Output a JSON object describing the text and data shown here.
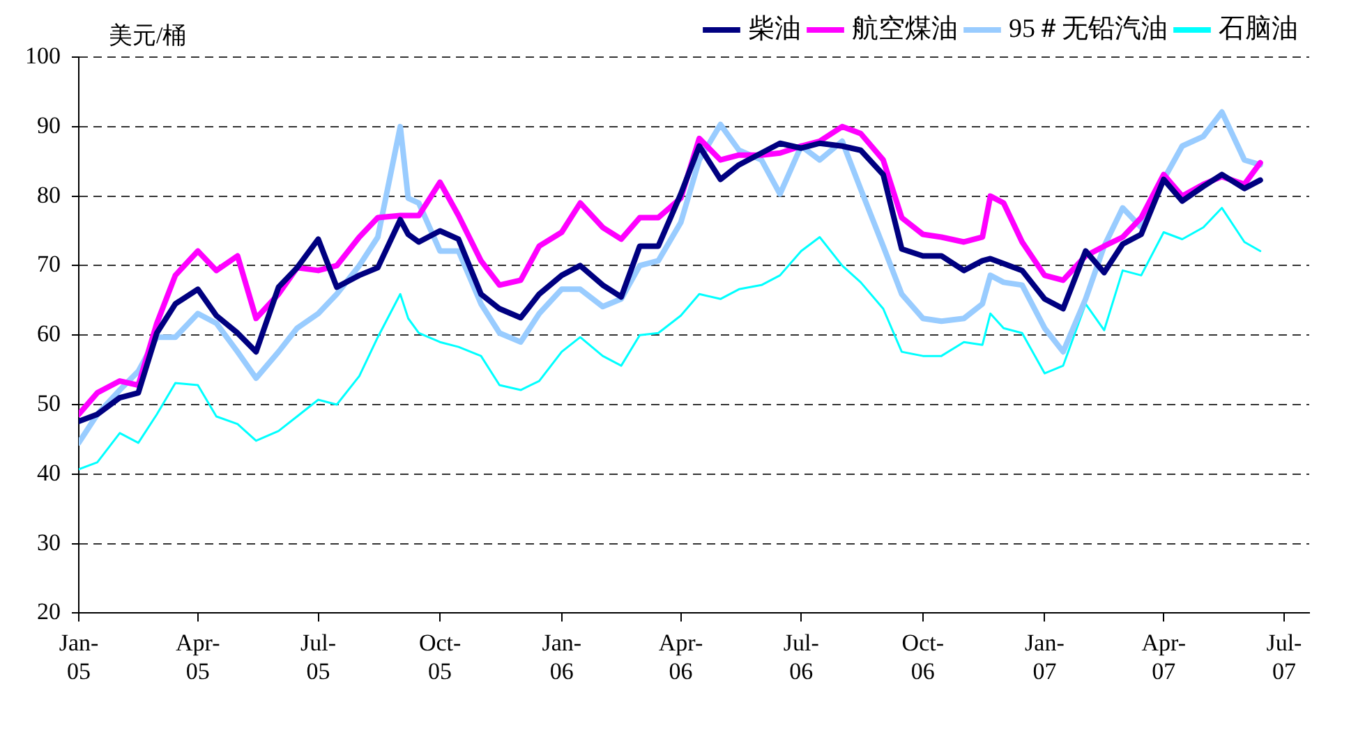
{
  "chart_data": {
    "type": "line",
    "ylabel": "美元/桶",
    "x": [
      "2005-01-01",
      "2005-01-15",
      "2005-02-01",
      "2005-02-15",
      "2005-03-01",
      "2005-03-15",
      "2005-04-01",
      "2005-04-15",
      "2005-05-01",
      "2005-05-15",
      "2005-06-01",
      "2005-06-15",
      "2005-07-01",
      "2005-07-15",
      "2005-08-01",
      "2005-08-15",
      "2005-09-01",
      "2005-09-07",
      "2005-09-15",
      "2005-10-01",
      "2005-10-15",
      "2005-11-01",
      "2005-11-15",
      "2005-12-01",
      "2005-12-15",
      "2006-01-01",
      "2006-01-15",
      "2006-02-01",
      "2006-02-15",
      "2006-03-01",
      "2006-03-15",
      "2006-04-01",
      "2006-04-15",
      "2006-05-01",
      "2006-05-15",
      "2006-06-01",
      "2006-06-15",
      "2006-07-01",
      "2006-07-15",
      "2006-08-01",
      "2006-08-15",
      "2006-09-01",
      "2006-09-15",
      "2006-10-01",
      "2006-10-15",
      "2006-11-01",
      "2006-11-15",
      "2006-11-21",
      "2006-12-01",
      "2006-12-15",
      "2007-01-01",
      "2007-01-15",
      "2007-02-01",
      "2007-02-15",
      "2007-03-01",
      "2007-03-15",
      "2007-04-01",
      "2007-04-15",
      "2007-05-01",
      "2007-05-15",
      "2007-06-01",
      "2007-06-13"
    ],
    "series": [
      {
        "name": "柴油",
        "color": "#000080",
        "values": [
          47.6,
          48.6,
          51,
          51.7,
          60.3,
          64.5,
          66.6,
          62.8,
          60.3,
          57.6,
          66.9,
          69.7,
          73.8,
          66.9,
          68.6,
          69.7,
          76.6,
          74.5,
          73.4,
          75,
          73.8,
          65.9,
          63.8,
          62.5,
          65.9,
          68.6,
          70,
          67.2,
          65.5,
          72.8,
          72.8,
          80.3,
          87.2,
          82.4,
          84.5,
          86.2,
          87.6,
          86.9,
          87.6,
          87.2,
          86.6,
          83.1,
          72.4,
          71.4,
          71.4,
          69.3,
          70.7,
          71,
          70.3,
          69.3,
          65.2,
          63.8,
          72.1,
          69,
          73.1,
          74.5,
          82.4,
          79.3,
          81.4,
          83.1,
          81.1,
          82.3
        ]
      },
      {
        "name": "航空煤油",
        "color": "#ff00ff",
        "values": [
          48.6,
          51.7,
          53.4,
          52.8,
          61.7,
          68.6,
          72.1,
          69.3,
          71.4,
          62.4,
          65.9,
          69.7,
          69.3,
          70,
          74.1,
          76.9,
          77.2,
          77.2,
          77.2,
          82,
          77.2,
          70.7,
          67.2,
          67.9,
          72.8,
          74.8,
          79,
          75.5,
          73.8,
          76.9,
          76.9,
          79.7,
          88.3,
          85.2,
          85.9,
          85.9,
          86.2,
          87.2,
          87.9,
          90,
          89,
          85.2,
          76.9,
          74.5,
          74.1,
          73.4,
          74.1,
          80,
          79,
          73.4,
          68.6,
          67.9,
          71.4,
          72.8,
          74.1,
          76.9,
          83.1,
          80,
          81.7,
          82.8,
          81.7,
          84.8
        ]
      },
      {
        "name": "95＃无铅汽油",
        "color": "#99ccff",
        "values": [
          44.5,
          48.6,
          52.1,
          54.8,
          59.7,
          59.7,
          63.1,
          61.7,
          57.6,
          53.8,
          57.6,
          61,
          63.1,
          65.9,
          70,
          74.1,
          90,
          79.7,
          79,
          72.1,
          72.1,
          64.5,
          60.3,
          59,
          63.1,
          66.6,
          66.6,
          64.1,
          65.2,
          70,
          70.7,
          76.2,
          85.2,
          90.3,
          86.6,
          85.2,
          80.3,
          87.2,
          85.2,
          87.9,
          81,
          72.8,
          65.9,
          62.4,
          62,
          62.4,
          64.5,
          68.6,
          67.6,
          67.2,
          61,
          57.6,
          65.2,
          72.8,
          78.3,
          75.5,
          82.4,
          87.2,
          88.6,
          92.1,
          85.2,
          84.5
        ]
      },
      {
        "name": "石脑油",
        "color": "#00ffff",
        "values": [
          40.7,
          41.7,
          45.9,
          44.5,
          48.6,
          53.1,
          52.8,
          48.3,
          47.2,
          44.8,
          46.2,
          48.3,
          50.7,
          50,
          54.1,
          59.7,
          65.9,
          62.4,
          60.3,
          59,
          58.3,
          57,
          52.8,
          52.1,
          53.4,
          57.6,
          59.7,
          57,
          55.6,
          60,
          60.3,
          62.8,
          65.9,
          65.2,
          66.6,
          67.2,
          68.6,
          72.1,
          74.1,
          70,
          67.6,
          63.8,
          57.6,
          57,
          57,
          59,
          58.6,
          63.1,
          61,
          60.3,
          54.5,
          55.6,
          64.5,
          60.7,
          69.3,
          68.6,
          74.8,
          73.8,
          75.5,
          78.3,
          73.4,
          72.1
        ]
      }
    ],
    "xlim": [
      "2005-01-01",
      "2007-07-20"
    ],
    "xticks": [
      {
        "value": "2005-01-01",
        "label": "Jan-05"
      },
      {
        "value": "2005-04-01",
        "label": "Apr-05"
      },
      {
        "value": "2005-07-01",
        "label": "Jul-05"
      },
      {
        "value": "2005-10-01",
        "label": "Oct-05"
      },
      {
        "value": "2006-01-01",
        "label": "Jan-06"
      },
      {
        "value": "2006-04-01",
        "label": "Apr-06"
      },
      {
        "value": "2006-07-01",
        "label": "Jul-06"
      },
      {
        "value": "2006-10-01",
        "label": "Oct-06"
      },
      {
        "value": "2007-01-01",
        "label": "Jan-07"
      },
      {
        "value": "2007-04-01",
        "label": "Apr-07"
      },
      {
        "value": "2007-07-01",
        "label": "Jul-07"
      }
    ],
    "ylim": [
      20,
      100
    ],
    "yticks": [
      20,
      30,
      40,
      50,
      60,
      70,
      80,
      90,
      100
    ],
    "grid": "y",
    "legend": "top right",
    "marker": "none",
    "line_style": "solid"
  }
}
